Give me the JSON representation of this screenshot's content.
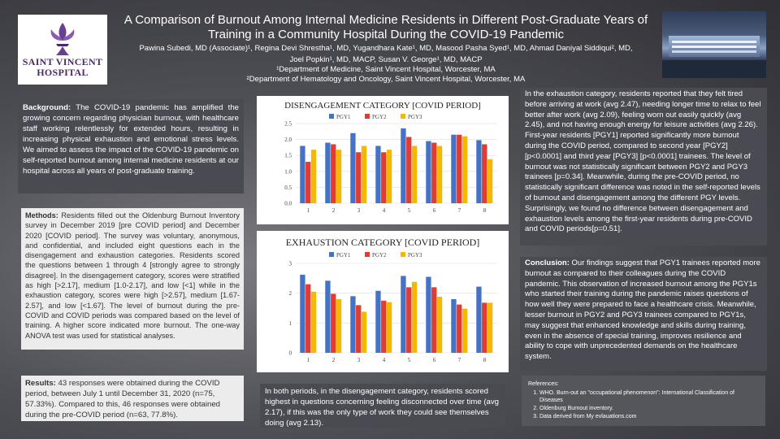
{
  "header": {
    "title": "A Comparison of Burnout Among Internal Medicine Residents in Different Post-Graduate Years of Training in a Community Hospital During the COVID-19 Pandemic",
    "authors_line1": "Pawina Subedi, MD (Associate)¹, Regina Devi Shrestha¹, MD, Yugandhara Kate¹, MD, Masood Pasha Syed¹, MD, Ahmad Daniyal Siddiqui², MD,",
    "authors_line2": "Joel Popkin¹, MD, MACP, Susan V. George¹, MD, MACP",
    "affil1": "¹Department of Medicine, Saint Vincent Hospital, Worcester, MA",
    "affil2": "²Department of Hematology and Oncology, Saint Vincent Hospital, Worcester, MA"
  },
  "logo": {
    "line1": "SAINT VINCENT",
    "line2": "HOSPITAL"
  },
  "background": {
    "heading": "Background:",
    "text": "The COVID-19 pandemic has amplified the growing concern regarding physician burnout, with healthcare staff working relentlessly for extended hours, resulting in increasing physical exhaustion and emotional stress levels. We aimed to assess the impact of the COVID-19 pandemic on self-reported burnout among internal medicine residents at our hospital across all years of post-graduate training."
  },
  "methods": {
    "heading": "Methods:",
    "text": "Residents filled out the Oldenburg Burnout Inventory survey in December 2019 [pre COVID period] and December 2020 [COVID period]. The survey was voluntary, anonymous, and confidential, and included eight questions each in the disengagement and exhaustion categories. Residents scored the questions between 1 through 4 [strongly agree to strongly disagree]. In the disengagement category, scores were stratified as high [>2.17], medium [1.0-2.17], and low [<1] while in the exhaustion category, scores were high [>2.57], medium [1.67-2.57], and low [<1.67]. The level of burnout during the pre-COVID and COVID periods was compared based on the level of training. A higher score indicated more burnout. The one-way ANOVA test was used for statistical analyses."
  },
  "results": {
    "heading": "Results:",
    "text": "43 responses were obtained during the COVID period, between July 1 until December 31, 2020 (n=75, 57.33%). Compared to this, 46 responses were obtained during the pre-COVID period (n=63, 77.8%)."
  },
  "middle_note": {
    "text": "In both periods, in the disengagement category, residents scored highest in questions concerning feeling disconnected over time (avg 2.17), if this was the only type of work they could see themselves doing (avg 2.13)."
  },
  "exhaustion_text": {
    "text": "In the exhaustion category, residents reported that they felt tired before arriving at work (avg 2.47), needing longer time to relax to feel better after work (avg 2.09), feeling worn out easily quickly (avg 2.45), and not having enough energy for leisure activities (avg 2.26). First-year residents [PGY1] reported significantly more burnout during the COVID period, compared to second year [PGY2] [p<0.0001] and third year [PGY3] [p<0.0001] trainees. The level of burnout was not statistically significant between PGY2 and PGY3 trainees [p=0.34]. Meanwhile, during the pre-COVID period, no statistically significant difference was noted in the self-reported levels of burnout and disengagement among the different PGY levels. Surprisingly, we found no difference between disengagement and exhaustion levels among the first-year residents during pre-COVID and COVID periods[p=0.51]."
  },
  "conclusion": {
    "heading": "Conclusion:",
    "text": "Our findings suggest that PGY1 trainees reported more burnout as compared to their colleagues during the COVID pandemic. This observation of increased burnout among the PGY1s who started their training during the pandemic raises questions of how well they were prepared to face a healthcare crisis. Meanwhile, lesser burnout in PGY2 and PGY3 trainees compared to PGY1s, may suggest that enhanced knowledge and skills during training, even in the absence of special training, improves resilience and ability to cope with unprecedented demands on the healthcare system."
  },
  "references": {
    "heading": "References:",
    "items": [
      "WHO. Burn-out an \"occupational phenomenon\": International Classification of Diseases",
      "Oldenburg Burnout inventory.",
      "Data derived from My evlauations.com"
    ]
  },
  "colors": {
    "pgy1": "#4472c4",
    "pgy2": "#e03c31",
    "pgy3": "#f5b800"
  },
  "chart_data": [
    {
      "type": "bar",
      "title": "DISENGAGEMENT CATEGORY [COVID PERIOD]",
      "categories": [
        "1",
        "2",
        "3",
        "4",
        "5",
        "6",
        "7",
        "8"
      ],
      "ylim": [
        0,
        2.5
      ],
      "yticks": [
        0.0,
        0.5,
        1.0,
        1.5,
        2.0,
        2.5
      ],
      "ytick_labels": [
        "0.0",
        "0.5",
        "1.0",
        "1.5",
        "2.0",
        "2.5"
      ],
      "legend": "top-center",
      "grid": true,
      "series": [
        {
          "name": "PGY1",
          "values": [
            1.8,
            1.9,
            2.2,
            1.8,
            2.35,
            1.95,
            2.15,
            1.98
          ]
        },
        {
          "name": "PGY2",
          "values": [
            1.3,
            1.85,
            1.6,
            1.6,
            2.08,
            1.9,
            2.15,
            1.85
          ]
        },
        {
          "name": "PGY3",
          "values": [
            1.68,
            1.68,
            1.8,
            1.68,
            1.8,
            1.8,
            2.1,
            1.38
          ]
        }
      ]
    },
    {
      "type": "bar",
      "title": "EXHAUSTION CATEGORY [COVID PERIOD]",
      "categories": [
        "1",
        "2",
        "3",
        "4",
        "5",
        "6",
        "7",
        "8"
      ],
      "ylim": [
        0,
        3
      ],
      "yticks": [
        0,
        1,
        2,
        3
      ],
      "ytick_labels": [
        "0",
        "1",
        "2",
        "3"
      ],
      "legend": "top-center",
      "grid": true,
      "series": [
        {
          "name": "PGY1",
          "values": [
            2.62,
            2.42,
            1.9,
            2.08,
            2.58,
            2.55,
            1.8,
            2.22
          ]
        },
        {
          "name": "PGY2",
          "values": [
            2.3,
            1.98,
            1.6,
            1.75,
            2.2,
            2.2,
            1.62,
            1.68
          ]
        },
        {
          "name": "PGY3",
          "values": [
            2.05,
            1.8,
            1.38,
            1.7,
            2.38,
            1.88,
            1.48,
            1.68
          ]
        }
      ]
    }
  ]
}
